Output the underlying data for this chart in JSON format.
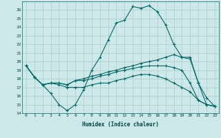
{
  "xlabel": "Humidex (Indice chaleur)",
  "ylabel": "",
  "bg_color": "#cce8e8",
  "grid_color": "#aacccc",
  "line_color": "#006666",
  "xlim": [
    -0.5,
    23.5
  ],
  "ylim": [
    14,
    27
  ],
  "yticks": [
    14,
    15,
    16,
    17,
    18,
    19,
    20,
    21,
    22,
    23,
    24,
    25,
    26
  ],
  "xticks": [
    0,
    1,
    2,
    3,
    4,
    5,
    6,
    7,
    8,
    9,
    10,
    11,
    12,
    13,
    14,
    15,
    16,
    17,
    18,
    19,
    20,
    21,
    22,
    23
  ],
  "series": [
    [
      19.5,
      18.2,
      17.3,
      16.3,
      15.0,
      14.3,
      15.0,
      16.7,
      19.0,
      20.5,
      22.5,
      24.5,
      24.8,
      26.4,
      26.2,
      26.5,
      25.8,
      24.3,
      22.0,
      20.5,
      20.5,
      17.5,
      15.8,
      14.8
    ],
    [
      19.5,
      18.2,
      17.3,
      17.5,
      17.5,
      17.3,
      17.8,
      18.0,
      18.3,
      18.5,
      18.8,
      19.0,
      19.3,
      19.5,
      19.8,
      20.0,
      20.2,
      20.5,
      20.8,
      20.5,
      20.3,
      17.5,
      15.0,
      14.8
    ],
    [
      19.5,
      18.2,
      17.3,
      17.5,
      17.5,
      17.3,
      17.8,
      17.8,
      18.0,
      18.3,
      18.5,
      18.8,
      19.0,
      19.2,
      19.4,
      19.5,
      19.5,
      19.5,
      19.3,
      19.0,
      17.5,
      15.5,
      15.0,
      14.8
    ],
    [
      19.5,
      18.2,
      17.3,
      17.5,
      17.3,
      17.0,
      17.0,
      17.0,
      17.3,
      17.5,
      17.5,
      17.8,
      18.0,
      18.3,
      18.5,
      18.5,
      18.3,
      18.0,
      17.5,
      17.0,
      16.5,
      15.5,
      15.0,
      14.8
    ]
  ]
}
